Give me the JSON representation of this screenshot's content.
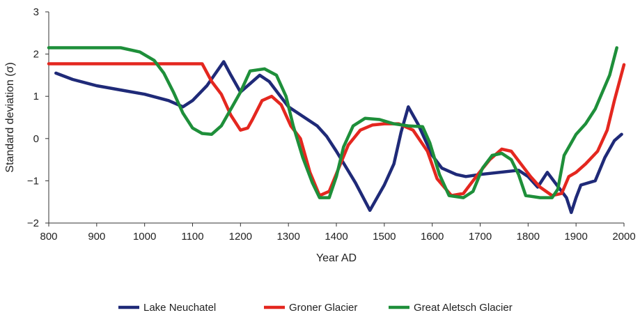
{
  "chart_data": {
    "type": "line",
    "xlabel": "Year AD",
    "ylabel": "Standard deviation (σ)",
    "xlim": [
      800,
      2000
    ],
    "ylim": [
      -2,
      3
    ],
    "x_ticks": [
      "800",
      "900",
      "1000",
      "1100",
      "1200",
      "1300",
      "1400",
      "1500",
      "1600",
      "1700",
      "1800",
      "1900",
      "2000"
    ],
    "y_ticks": [
      "3",
      "2",
      "1",
      "0",
      "−1",
      "−2"
    ],
    "legend_position": "bottom-center",
    "series": [
      {
        "name": "Lake Neuchatel",
        "color": "#1f2a78",
        "points": [
          [
            815,
            1.55
          ],
          [
            850,
            1.4
          ],
          [
            900,
            1.25
          ],
          [
            950,
            1.15
          ],
          [
            1000,
            1.05
          ],
          [
            1050,
            0.9
          ],
          [
            1080,
            0.75
          ],
          [
            1100,
            0.9
          ],
          [
            1130,
            1.25
          ],
          [
            1165,
            1.82
          ],
          [
            1180,
            1.5
          ],
          [
            1200,
            1.1
          ],
          [
            1220,
            1.3
          ],
          [
            1240,
            1.5
          ],
          [
            1260,
            1.35
          ],
          [
            1280,
            1.05
          ],
          [
            1300,
            0.75
          ],
          [
            1340,
            0.45
          ],
          [
            1360,
            0.3
          ],
          [
            1380,
            0.05
          ],
          [
            1400,
            -0.3
          ],
          [
            1440,
            -1.05
          ],
          [
            1470,
            -1.7
          ],
          [
            1500,
            -1.1
          ],
          [
            1520,
            -0.6
          ],
          [
            1535,
            0.15
          ],
          [
            1550,
            0.75
          ],
          [
            1570,
            0.35
          ],
          [
            1600,
            -0.4
          ],
          [
            1620,
            -0.7
          ],
          [
            1650,
            -0.85
          ],
          [
            1670,
            -0.9
          ],
          [
            1700,
            -0.85
          ],
          [
            1740,
            -0.8
          ],
          [
            1780,
            -0.75
          ],
          [
            1800,
            -0.9
          ],
          [
            1820,
            -1.15
          ],
          [
            1840,
            -0.8
          ],
          [
            1860,
            -1.1
          ],
          [
            1880,
            -1.4
          ],
          [
            1890,
            -1.75
          ],
          [
            1900,
            -1.4
          ],
          [
            1910,
            -1.1
          ],
          [
            1940,
            -1.0
          ],
          [
            1960,
            -0.45
          ],
          [
            1980,
            -0.05
          ],
          [
            1995,
            0.1
          ]
        ]
      },
      {
        "name": "Groner Glacier",
        "color": "#e4271f",
        "points": [
          [
            800,
            1.77
          ],
          [
            1120,
            1.77
          ],
          [
            1140,
            1.35
          ],
          [
            1160,
            1.05
          ],
          [
            1180,
            0.55
          ],
          [
            1200,
            0.2
          ],
          [
            1215,
            0.25
          ],
          [
            1225,
            0.45
          ],
          [
            1245,
            0.9
          ],
          [
            1265,
            1.0
          ],
          [
            1285,
            0.8
          ],
          [
            1305,
            0.3
          ],
          [
            1325,
            0.0
          ],
          [
            1345,
            -0.8
          ],
          [
            1365,
            -1.35
          ],
          [
            1385,
            -1.25
          ],
          [
            1405,
            -0.7
          ],
          [
            1425,
            -0.15
          ],
          [
            1450,
            0.2
          ],
          [
            1475,
            0.32
          ],
          [
            1500,
            0.35
          ],
          [
            1530,
            0.35
          ],
          [
            1560,
            0.2
          ],
          [
            1590,
            -0.3
          ],
          [
            1610,
            -0.95
          ],
          [
            1640,
            -1.35
          ],
          [
            1665,
            -1.3
          ],
          [
            1695,
            -0.85
          ],
          [
            1720,
            -0.5
          ],
          [
            1745,
            -0.25
          ],
          [
            1765,
            -0.3
          ],
          [
            1785,
            -0.6
          ],
          [
            1805,
            -0.9
          ],
          [
            1825,
            -1.15
          ],
          [
            1850,
            -1.35
          ],
          [
            1870,
            -1.3
          ],
          [
            1885,
            -0.9
          ],
          [
            1900,
            -0.8
          ],
          [
            1920,
            -0.6
          ],
          [
            1945,
            -0.3
          ],
          [
            1965,
            0.2
          ],
          [
            1980,
            0.9
          ],
          [
            2000,
            1.75
          ]
        ]
      },
      {
        "name": "Great Aletsch Glacier",
        "color": "#1e8f3a",
        "points": [
          [
            800,
            2.15
          ],
          [
            950,
            2.15
          ],
          [
            990,
            2.05
          ],
          [
            1020,
            1.85
          ],
          [
            1040,
            1.55
          ],
          [
            1060,
            1.1
          ],
          [
            1080,
            0.6
          ],
          [
            1100,
            0.25
          ],
          [
            1120,
            0.12
          ],
          [
            1140,
            0.1
          ],
          [
            1160,
            0.3
          ],
          [
            1180,
            0.7
          ],
          [
            1200,
            1.1
          ],
          [
            1220,
            1.6
          ],
          [
            1250,
            1.65
          ],
          [
            1275,
            1.5
          ],
          [
            1295,
            1.0
          ],
          [
            1310,
            0.3
          ],
          [
            1330,
            -0.45
          ],
          [
            1350,
            -1.05
          ],
          [
            1365,
            -1.4
          ],
          [
            1385,
            -1.4
          ],
          [
            1400,
            -0.9
          ],
          [
            1415,
            -0.2
          ],
          [
            1435,
            0.3
          ],
          [
            1460,
            0.48
          ],
          [
            1490,
            0.45
          ],
          [
            1520,
            0.35
          ],
          [
            1550,
            0.3
          ],
          [
            1580,
            0.28
          ],
          [
            1595,
            -0.1
          ],
          [
            1615,
            -0.85
          ],
          [
            1635,
            -1.35
          ],
          [
            1665,
            -1.4
          ],
          [
            1685,
            -1.25
          ],
          [
            1705,
            -0.7
          ],
          [
            1725,
            -0.4
          ],
          [
            1745,
            -0.35
          ],
          [
            1765,
            -0.5
          ],
          [
            1780,
            -0.85
          ],
          [
            1795,
            -1.35
          ],
          [
            1825,
            -1.4
          ],
          [
            1850,
            -1.4
          ],
          [
            1862,
            -1.2
          ],
          [
            1875,
            -0.4
          ],
          [
            1890,
            -0.1
          ],
          [
            1900,
            0.1
          ],
          [
            1920,
            0.35
          ],
          [
            1940,
            0.7
          ],
          [
            1955,
            1.1
          ],
          [
            1970,
            1.5
          ],
          [
            1985,
            2.15
          ]
        ]
      }
    ]
  }
}
